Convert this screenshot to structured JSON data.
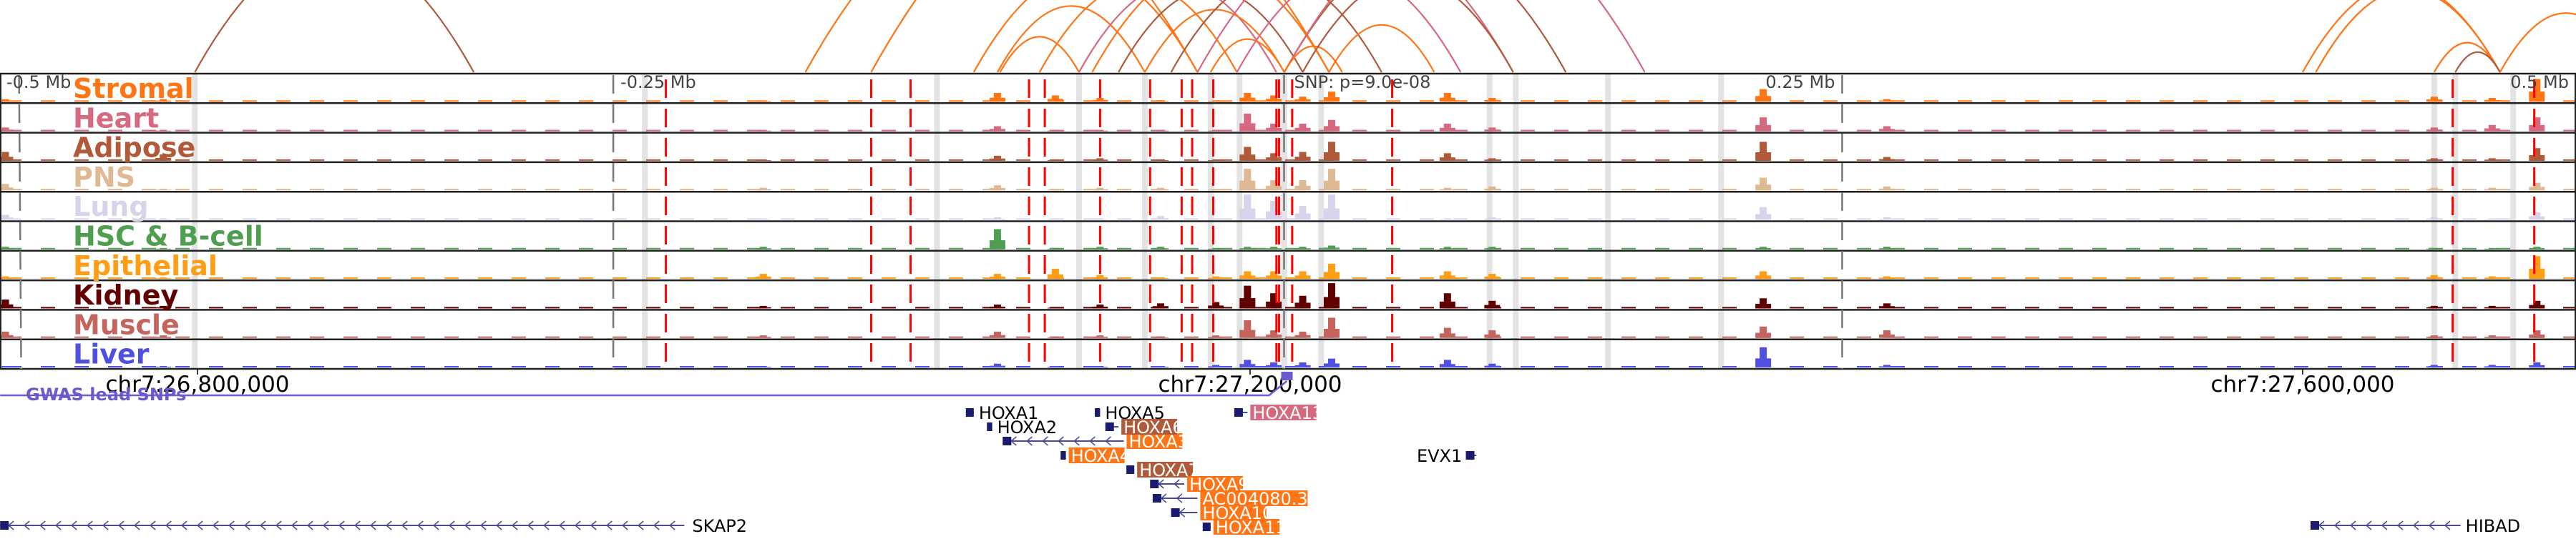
{
  "chart_data": {
    "type": "genome_browser",
    "region": {
      "chrom": "chr7",
      "start": 26725000,
      "end": 27690000
    },
    "axis": {
      "ticks": [
        {
          "pos": 26800000,
          "label": "chr7:26,800,000"
        },
        {
          "pos": 27200000,
          "label": "chr7:27,200,000"
        },
        {
          "pos": 27600000,
          "label": "chr7:27,600,000"
        }
      ]
    },
    "distance_labels": [
      {
        "pos": 26733000,
        "label": "-0.5 Mb"
      },
      {
        "pos": 26958000,
        "label": "-0.25 Mb"
      },
      {
        "pos": 27425000,
        "label": "0.25 Mb"
      },
      {
        "pos": 27675000,
        "label": "0.5 Mb"
      }
    ],
    "snp": {
      "pos": 27214000,
      "label": "SNP: p=9.0e-08"
    },
    "tracks": [
      {
        "name": "Stromal",
        "color": "#ff7414"
      },
      {
        "name": "Heart",
        "color": "#d6697f"
      },
      {
        "name": "Adipose",
        "color": "#b05a3a"
      },
      {
        "name": "PNS",
        "color": "#dfb894"
      },
      {
        "name": "Lung",
        "color": "#d8d2ea"
      },
      {
        "name": "HSC & B-cell",
        "color": "#4f9e4f"
      },
      {
        "name": "Epithelial",
        "color": "#ff9e14"
      },
      {
        "name": "Kidney",
        "color": "#600000"
      },
      {
        "name": "Muscle",
        "color": "#c4645c"
      },
      {
        "name": "Liver",
        "color": "#5050e0"
      }
    ],
    "peaks": [
      {
        "pos": 26727000,
        "h": [
          0.1,
          0.15,
          0.35,
          0.25,
          0.2,
          0.1,
          0.1,
          0.35,
          0.25,
          0.05
        ]
      },
      {
        "pos": 26787000,
        "h": [
          0.1,
          0.05,
          0.25,
          0.05,
          0.05,
          0.05,
          0.05,
          0.1,
          0.1,
          0.05
        ]
      },
      {
        "pos": 27015000,
        "h": [
          0.05,
          0.05,
          0.05,
          0.1,
          0.05,
          0.1,
          0.2,
          0.1,
          0.1,
          0.05
        ]
      },
      {
        "pos": 27104000,
        "h": [
          0.35,
          0.2,
          0.2,
          0.2,
          0.1,
          0.8,
          0.2,
          0.15,
          0.25,
          0.15
        ]
      },
      {
        "pos": 27126000,
        "h": [
          0.25,
          0.05,
          0.05,
          0.05,
          0.05,
          0.05,
          0.4,
          0.05,
          0.05,
          0.05
        ]
      },
      {
        "pos": 27143000,
        "h": [
          0.15,
          0.05,
          0.1,
          0.1,
          0.05,
          0.1,
          0.15,
          0.15,
          0.1,
          0.05
        ]
      },
      {
        "pos": 27166000,
        "h": [
          0.05,
          0.05,
          0.05,
          0.1,
          0.15,
          0.1,
          0.05,
          0.2,
          0.05,
          0.05
        ]
      },
      {
        "pos": 27187000,
        "h": [
          0.05,
          0.05,
          0.05,
          0.05,
          0.05,
          0.05,
          0.1,
          0.25,
          0.1,
          0.1
        ]
      },
      {
        "pos": 27199000,
        "h": [
          0.35,
          0.7,
          0.55,
          0.85,
          1.0,
          0.1,
          0.3,
          0.9,
          0.7,
          0.3
        ]
      },
      {
        "pos": 27209000,
        "h": [
          0.25,
          0.3,
          0.3,
          0.4,
          0.75,
          0.1,
          0.3,
          0.6,
          0.3,
          0.2
        ]
      },
      {
        "pos": 27220000,
        "h": [
          0.2,
          0.3,
          0.35,
          0.4,
          0.55,
          0.1,
          0.3,
          0.5,
          0.25,
          0.2
        ]
      },
      {
        "pos": 27231000,
        "h": [
          0.4,
          0.45,
          0.75,
          0.85,
          1.0,
          0.15,
          0.6,
          1.0,
          0.8,
          0.35
        ]
      },
      {
        "pos": 27275000,
        "h": [
          0.35,
          0.3,
          0.3,
          0.1,
          0.05,
          0.1,
          0.3,
          0.6,
          0.4,
          0.3
        ]
      },
      {
        "pos": 27292000,
        "h": [
          0.15,
          0.15,
          0.1,
          0.15,
          0.1,
          0.1,
          0.2,
          0.3,
          0.3,
          0.15
        ]
      },
      {
        "pos": 27395000,
        "h": [
          0.5,
          0.55,
          0.75,
          0.5,
          0.5,
          0.1,
          0.3,
          0.4,
          0.45,
          0.8
        ]
      },
      {
        "pos": 27442000,
        "h": [
          0.1,
          0.2,
          0.15,
          0.15,
          0.1,
          0.1,
          0.1,
          0.2,
          0.3,
          0.1
        ]
      },
      {
        "pos": 27650000,
        "h": [
          0.2,
          0.15,
          0.1,
          0.1,
          0.1,
          0.05,
          0.15,
          0.1,
          0.1,
          0.1
        ]
      },
      {
        "pos": 27672000,
        "h": [
          0.15,
          0.25,
          0.1,
          0.1,
          0.05,
          0.05,
          0.1,
          0.1,
          0.1,
          0.1
        ]
      },
      {
        "pos": 27689000,
        "h": [
          0.9,
          0.55,
          0.5,
          0.3,
          0.3,
          0.1,
          0.9,
          0.3,
          0.3,
          0.2
        ]
      }
    ],
    "gwas_snps_pos": [
      26978000,
      27056000,
      27071000,
      27116000,
      27122000,
      27143000,
      27162000,
      27174000,
      27178000,
      27186000,
      27210000,
      27211000,
      27216000,
      27254000,
      27657000,
      27688000
    ],
    "highlights_pos": [
      26799000,
      26970000,
      27081000,
      27135000,
      27160000,
      27185000,
      27196000,
      27213000,
      27227000,
      27291000,
      27301000,
      27336000,
      27379000,
      27650000,
      27658000,
      27680000
    ],
    "arcs": [
      {
        "a": 26799000,
        "b": 26905000,
        "color": "#b05a3a"
      },
      {
        "a": 27031000,
        "b": 27180000,
        "color": "#ff7414"
      },
      {
        "a": 27056000,
        "b": 27230000,
        "color": "#ff7414"
      },
      {
        "a": 27095000,
        "b": 27180000,
        "color": "#ff7414"
      },
      {
        "a": 27104000,
        "b": 27160000,
        "color": "#ff7414"
      },
      {
        "a": 27120000,
        "b": 27195000,
        "color": "#ff7414"
      },
      {
        "a": 27135000,
        "b": 27210000,
        "color": "#d6697f"
      },
      {
        "a": 27140000,
        "b": 27230000,
        "color": "#ff7414"
      },
      {
        "a": 27150000,
        "b": 27220000,
        "color": "#b05a3a"
      },
      {
        "a": 27160000,
        "b": 27213000,
        "color": "#ff7414"
      },
      {
        "a": 27170000,
        "b": 27250000,
        "color": "#b05a3a"
      },
      {
        "a": 27180000,
        "b": 27300000,
        "color": "#d6697f"
      },
      {
        "a": 27185000,
        "b": 27213000,
        "color": "#ff7414"
      },
      {
        "a": 27195000,
        "b": 27280000,
        "color": "#d6697f"
      },
      {
        "a": 27213000,
        "b": 27320000,
        "color": "#b05a3a"
      },
      {
        "a": 27213000,
        "b": 27350000,
        "color": "#d6697f"
      },
      {
        "a": 27213000,
        "b": 27235000,
        "color": "#ff7414"
      },
      {
        "a": 27220000,
        "b": 27300000,
        "color": "#b05a3a"
      },
      {
        "a": 27230000,
        "b": 27270000,
        "color": "#ff7414"
      },
      {
        "a": 27105000,
        "b": 27135000,
        "color": "#ff7414"
      },
      {
        "a": 27600000,
        "b": 27675000,
        "color": "#ff7414"
      },
      {
        "a": 27605000,
        "b": 27675000,
        "color": "#ff7414"
      },
      {
        "a": 27650000,
        "b": 27675000,
        "color": "#ff7414"
      },
      {
        "a": 27658000,
        "b": 27675000,
        "color": "#b05a3a"
      },
      {
        "a": 27675000,
        "b": 27725000,
        "color": "#ff7414"
      }
    ],
    "gwas_track": {
      "label": "GWAS lead SNPs",
      "color": "#6a5acd"
    },
    "genes": [
      {
        "name": "HOXA1",
        "start": 27092000,
        "end": 27095000,
        "row": 0,
        "strand": "-",
        "hl": null
      },
      {
        "name": "HOXA2",
        "start": 27100000,
        "end": 27102000,
        "row": 1,
        "strand": "-",
        "hl": null
      },
      {
        "name": "HOXA3",
        "start": 27106000,
        "end": 27152000,
        "row": 2,
        "strand": "-",
        "hl": "#ff7414"
      },
      {
        "name": "HOXA4",
        "start": 27128000,
        "end": 27130000,
        "row": 3,
        "strand": "-",
        "hl": "#ff7414"
      },
      {
        "name": "HOXA5",
        "start": 27141000,
        "end": 27143000,
        "row": 0,
        "strand": "-",
        "hl": null
      },
      {
        "name": "HOXA6",
        "start": 27145000,
        "end": 27150000,
        "row": 1,
        "strand": "-",
        "hl": "#b05a3a"
      },
      {
        "name": "HOXA7",
        "start": 27153000,
        "end": 27156000,
        "row": 4,
        "strand": "-",
        "hl": "#b05a3a"
      },
      {
        "name": "HOXA9",
        "start": 27162000,
        "end": 27175000,
        "row": 5,
        "strand": "-",
        "hl": "#ff7414"
      },
      {
        "name": "AC004080.3",
        "start": 27163000,
        "end": 27180000,
        "row": 6,
        "strand": "-",
        "hl": "#ff7414"
      },
      {
        "name": "HOXA10",
        "start": 27170000,
        "end": 27180000,
        "row": 7,
        "strand": "-",
        "hl": "#ff7414"
      },
      {
        "name": "HOXA11",
        "start": 27182000,
        "end": 27185000,
        "row": 8,
        "strand": "-",
        "hl": "#ff7414"
      },
      {
        "name": "HOXA13",
        "start": 27194000,
        "end": 27199000,
        "row": 0,
        "strand": "-",
        "hl": "#d6697f"
      },
      {
        "name": "EVX1",
        "start": 27282000,
        "end": 27286000,
        "row": 3,
        "strand": "+",
        "hl": null,
        "label_left": true
      },
      {
        "name": "SKAP2",
        "start": 26725000,
        "end": 26985000,
        "row": 9,
        "strand": "-",
        "hl": null
      },
      {
        "name": "HIBAD",
        "start": 27603000,
        "end": 27660000,
        "row": 9,
        "strand": "-",
        "hl": null,
        "label_right": true
      }
    ]
  }
}
